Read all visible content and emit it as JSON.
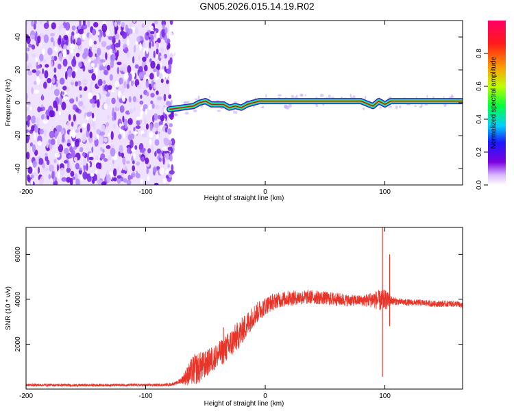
{
  "figure": {
    "title": "GN05.2026.015.14.19.R02"
  },
  "chart_data": [
    {
      "type": "heatmap",
      "title": "GN05.2026.015.14.19.R02",
      "xlabel": "Height of straight line (km)",
      "ylabel": "Frequency (Hz)",
      "xlim": [
        -200,
        165
      ],
      "ylim": [
        -50,
        50
      ],
      "xticks": [
        -200,
        -100,
        0,
        100
      ],
      "yticks": [
        -40,
        -20,
        0,
        20,
        40
      ],
      "noise_region_x": [
        -200,
        -80
      ],
      "signal_line": {
        "name": "Doppler frequency trace",
        "x": [
          -80,
          -70,
          -60,
          -55,
          -50,
          -45,
          -40,
          -35,
          -30,
          -25,
          -20,
          -15,
          -10,
          -5,
          0,
          20,
          40,
          60,
          80,
          90,
          95,
          100,
          105,
          110,
          120,
          140,
          165
        ],
        "freq": [
          -4,
          -3,
          -2,
          0,
          1,
          -1,
          -1,
          -1,
          -3,
          -2,
          -3,
          -1,
          0,
          1,
          1,
          1,
          1,
          1,
          1,
          -2,
          1,
          -1,
          1,
          1,
          1,
          1,
          1
        ]
      },
      "colorbar": {
        "label": "Normalized spectral amplitude",
        "range": [
          0,
          1
        ],
        "ticks": [
          "0.0",
          "0.2",
          "0.4",
          "0.6",
          "0.8"
        ],
        "tick_values": [
          0.0,
          0.2,
          0.4,
          0.6,
          0.8
        ],
        "colors": [
          "#ffffff",
          "#7b00e0",
          "#1a1aff",
          "#00cfff",
          "#00ff40",
          "#bfff00",
          "#ff9900",
          "#ff1a1a",
          "#ff0066"
        ]
      }
    },
    {
      "type": "line",
      "xlabel": "Height of straight line (km)",
      "ylabel": "SNR (10 * v/v)",
      "xlim": [
        -200,
        165
      ],
      "ylim": [
        0,
        7200
      ],
      "xticks": [
        -200,
        -100,
        0,
        100
      ],
      "yticks": [
        2000,
        4000,
        6000
      ],
      "series": [
        {
          "name": "SNR",
          "color": "#e8352a",
          "x": [
            -200,
            -180,
            -160,
            -140,
            -120,
            -100,
            -90,
            -80,
            -75,
            -70,
            -65,
            -60,
            -55,
            -50,
            -45,
            -40,
            -35,
            -30,
            -25,
            -20,
            -15,
            -10,
            -5,
            0,
            5,
            10,
            20,
            30,
            40,
            50,
            60,
            70,
            80,
            85,
            90,
            95,
            98,
            100,
            102,
            105,
            110,
            120,
            130,
            140,
            150,
            160,
            165
          ],
          "y": [
            180,
            180,
            170,
            175,
            180,
            180,
            180,
            200,
            250,
            400,
            600,
            850,
            950,
            1100,
            1300,
            1500,
            1700,
            1950,
            2250,
            2550,
            2900,
            3250,
            3500,
            3700,
            3850,
            3950,
            4050,
            4080,
            4100,
            4050,
            4000,
            3950,
            3950,
            3950,
            4000,
            3950,
            3900,
            4000,
            3950,
            3950,
            3900,
            3850,
            3850,
            3800,
            3800,
            3800,
            3700
          ],
          "noise_amplitude": [
            60,
            60,
            60,
            60,
            60,
            60,
            60,
            60,
            70,
            150,
            450,
            700,
            700,
            600,
            600,
            550,
            600,
            650,
            650,
            600,
            550,
            500,
            450,
            400,
            380,
            350,
            350,
            320,
            320,
            300,
            300,
            260,
            240,
            300,
            380,
            450,
            500,
            450,
            400,
            220,
            160,
            150,
            140,
            140,
            140,
            140,
            140
          ]
        }
      ],
      "spikes": [
        {
          "x": 98,
          "y_min": 550,
          "y_max": 7200
        },
        {
          "x": 104,
          "y_min": 2800,
          "y_max": 6000
        },
        {
          "x": -35,
          "y_min": 1500,
          "y_max": 2750
        }
      ]
    }
  ]
}
